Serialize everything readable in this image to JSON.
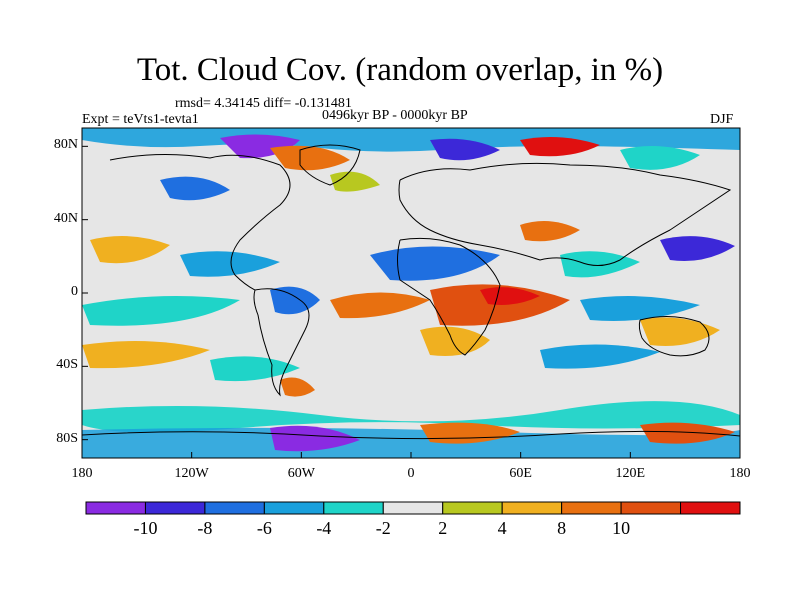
{
  "title": "Tot. Cloud Cov. (random overlap, in %)",
  "stats": "rmsd= 4.34145 diff= -0.131481",
  "period": "0496kyr BP - 0000kyr BP",
  "expt": "Expt = teVts1-tevta1",
  "season": "DJF",
  "map": {
    "lon_range": [
      -180,
      180
    ],
    "lat_range": [
      -90,
      90
    ],
    "y_ticks": [
      "80N",
      "40N",
      "0",
      "40S",
      "80S"
    ],
    "y_tick_values": [
      80,
      40,
      0,
      -40,
      -80
    ],
    "x_ticks": [
      "180",
      "120W",
      "60W",
      "0",
      "60E",
      "120E",
      "180"
    ],
    "x_tick_values": [
      -180,
      -120,
      -60,
      0,
      60,
      120,
      180
    ],
    "background_color": "#e6e6e6",
    "coastline_color": "#000000"
  },
  "colorbar": {
    "labels": [
      "-10",
      "-8",
      "-6",
      "-4",
      "-2",
      "2",
      "4",
      "8",
      "10"
    ],
    "colors": [
      "#8a2be2",
      "#3c28d8",
      "#1f6fe0",
      "#1aa0dc",
      "#1fd4c8",
      "#e6e6e6",
      "#b8c820",
      "#f0b020",
      "#e87010",
      "#e05010",
      "#e01010"
    ]
  }
}
